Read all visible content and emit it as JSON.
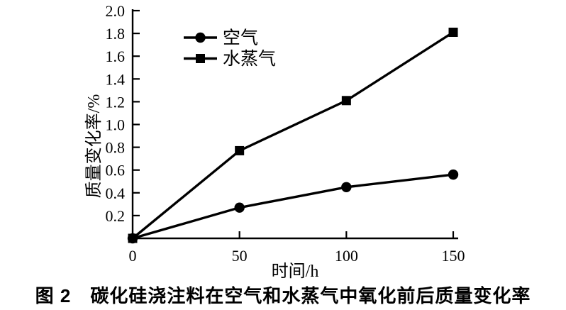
{
  "figure": {
    "caption": "图 2　碳化硅浇注料在空气和水蒸气中氧化前后质量变化率"
  },
  "chart_data": {
    "type": "line",
    "title": "",
    "xlabel": "时间/h",
    "ylabel": "质量变化率/%",
    "x": [
      0,
      50,
      100,
      150
    ],
    "xlim": [
      0,
      150
    ],
    "ylim": [
      0,
      2.0
    ],
    "x_ticks": [
      0,
      50,
      100,
      150
    ],
    "y_ticks": [
      0.2,
      0.4,
      0.6,
      0.8,
      1.0,
      1.2,
      1.4,
      1.6,
      1.8,
      2.0
    ],
    "grid": false,
    "legend_position": "top-left-inside",
    "color": "#000000",
    "series": [
      {
        "id": "air",
        "name": "空气",
        "marker": "circle",
        "values": [
          0,
          0.27,
          0.45,
          0.56
        ]
      },
      {
        "id": "steam",
        "name": "水蒸气",
        "marker": "square",
        "values": [
          0,
          0.77,
          1.21,
          1.81
        ]
      }
    ]
  }
}
